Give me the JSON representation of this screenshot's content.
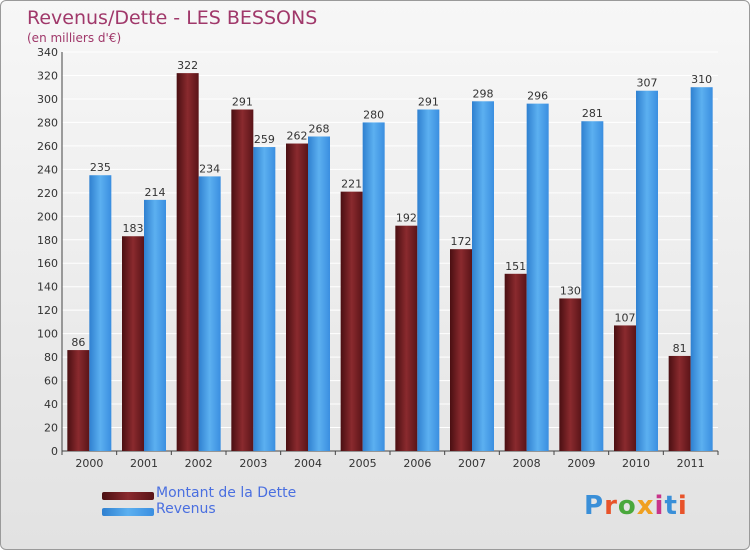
{
  "chart_data": {
    "type": "bar",
    "title": "Revenus/Dette - LES BESSONS",
    "subtitle": "(en milliers d'€)",
    "categories": [
      "2000",
      "2001",
      "2002",
      "2003",
      "2004",
      "2005",
      "2006",
      "2007",
      "2008",
      "2009",
      "2010",
      "2011"
    ],
    "series": [
      {
        "name": "Montant de la Dette",
        "color": "#6b1a1e",
        "values": [
          86,
          183,
          322,
          291,
          262,
          221,
          192,
          172,
          151,
          130,
          107,
          81
        ]
      },
      {
        "name": "Revenus",
        "color": "#3a90e0",
        "values": [
          235,
          214,
          234,
          259,
          268,
          280,
          291,
          298,
          296,
          281,
          307,
          310
        ]
      }
    ],
    "ylim": [
      0,
      340
    ],
    "yticks": [
      0,
      20,
      40,
      60,
      80,
      100,
      120,
      140,
      160,
      180,
      200,
      220,
      240,
      260,
      280,
      300,
      320,
      340
    ],
    "grid": true,
    "legend_position": "bottom-left"
  },
  "branding": {
    "logo_text": "Proxiti",
    "logo_colors": [
      "#3a8fd8",
      "#e8532a",
      "#4aa83c",
      "#f0a020",
      "#c8348a",
      "#3a8fd8",
      "#e8532a"
    ]
  }
}
